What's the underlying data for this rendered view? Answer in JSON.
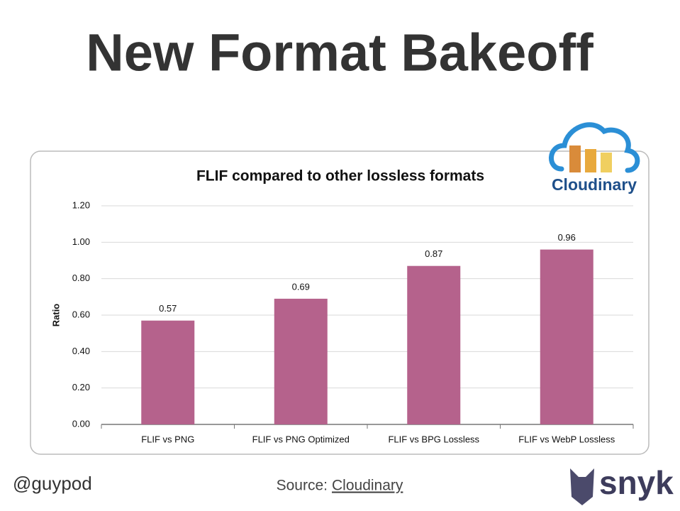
{
  "title": "New Format Bakeoff",
  "chart_data": {
    "type": "bar",
    "title": "FLIF compared to other lossless formats",
    "ylabel": "Ratio",
    "categories": [
      "FLIF vs PNG",
      "FLIF vs PNG Optimized",
      "FLIF vs BPG Lossless",
      "FLIF vs WebP Lossless"
    ],
    "values": [
      0.57,
      0.69,
      0.87,
      0.96
    ],
    "color": "#b5628c",
    "ylim": [
      0,
      1.2
    ],
    "yticks": [
      {
        "value": 0,
        "label": "0.00"
      },
      {
        "value": 0.2,
        "label": "0.20"
      },
      {
        "value": 0.4,
        "label": "0.40"
      },
      {
        "value": 0.6,
        "label": "0.60"
      },
      {
        "value": 0.8,
        "label": "0.80"
      },
      {
        "value": 1,
        "label": "1.00"
      },
      {
        "value": 1.2,
        "label": "1.20"
      }
    ],
    "grid": true
  },
  "logos": {
    "cloudinary": "Cloudinary",
    "snyk": "snyk"
  },
  "footer": {
    "handle": "@guypod",
    "source_label": "Source:",
    "source_link": "Cloudinary"
  }
}
